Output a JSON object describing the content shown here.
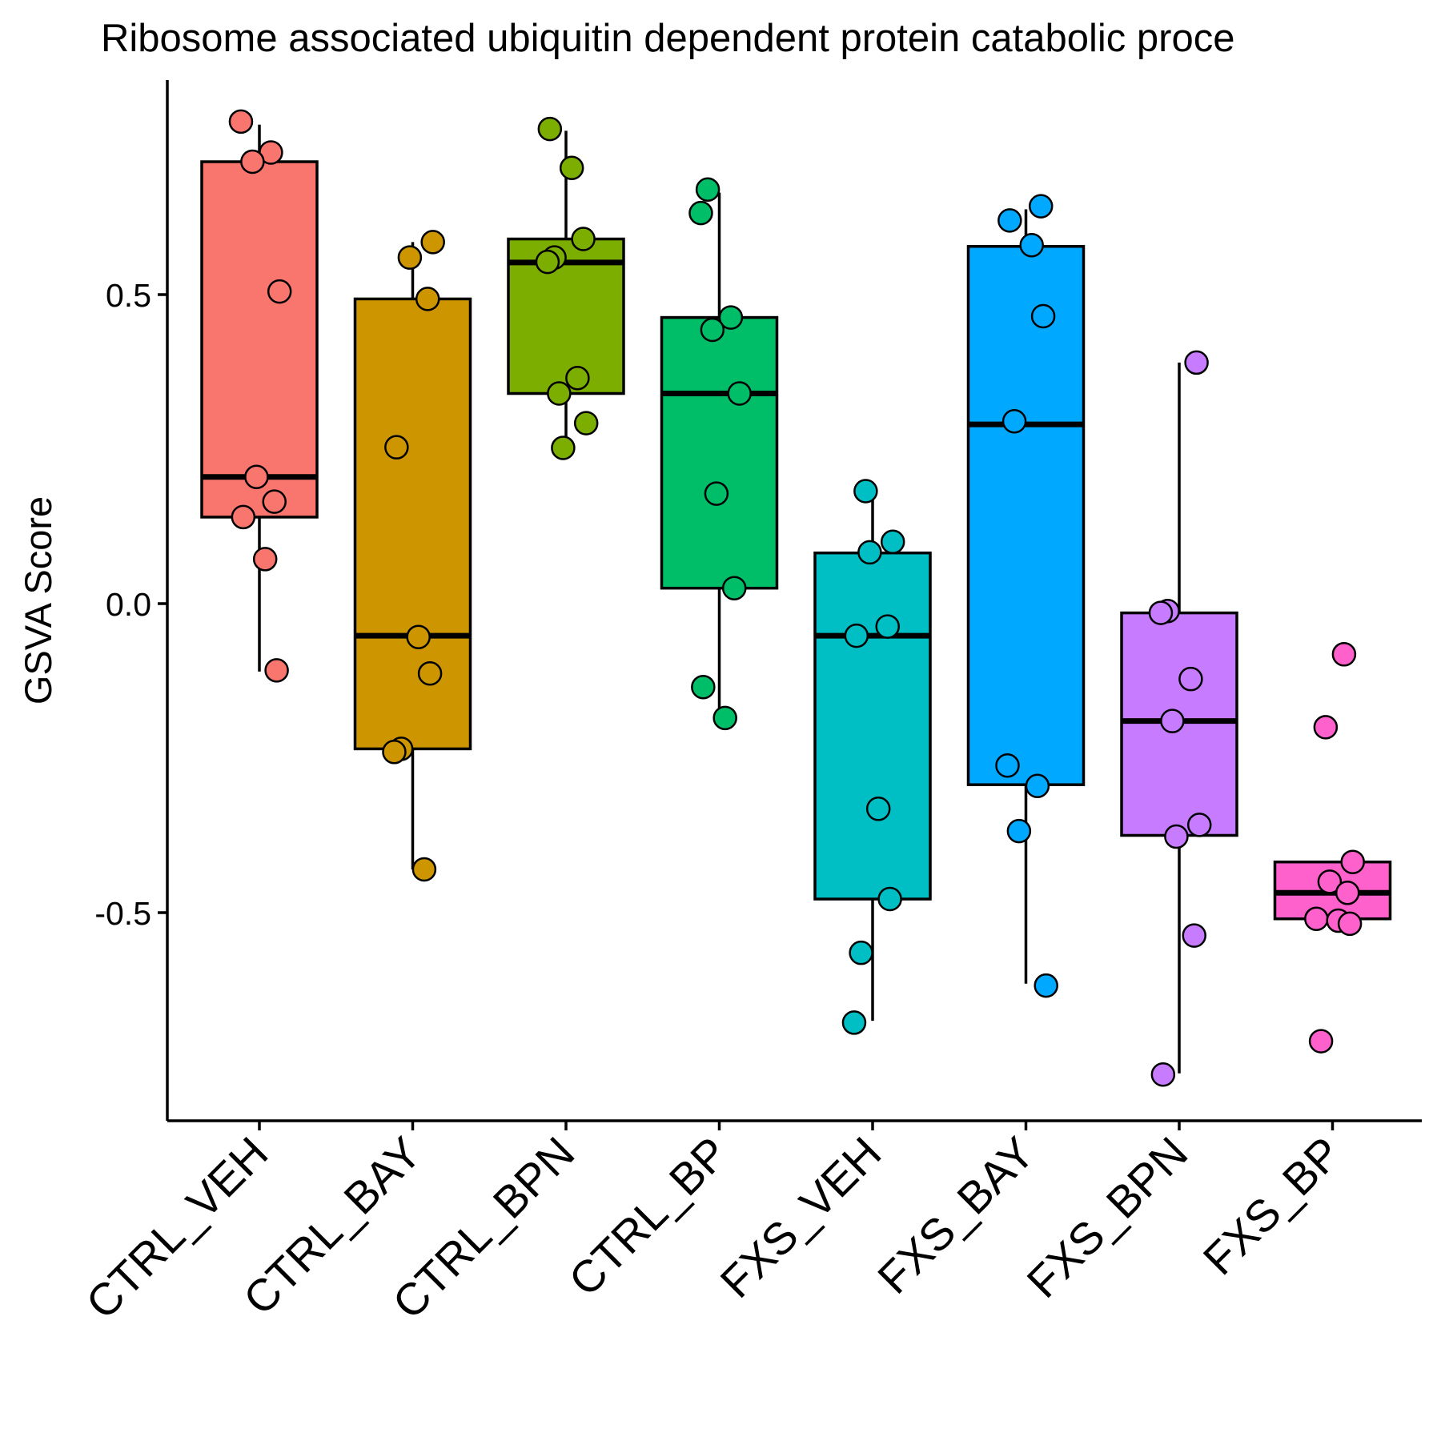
{
  "chart_data": {
    "type": "box",
    "title": "Ribosome associated ubiquitin dependent protein catabolic proce",
    "xlabel": "",
    "ylabel": "GSVA Score",
    "ylim": [
      -0.83,
      0.84
    ],
    "yticks": [
      -0.5,
      0.0,
      0.5
    ],
    "ytick_labels": [
      "-0.5",
      "0.0",
      "0.5"
    ],
    "grid": false,
    "legend": "none",
    "categories": [
      "CTRL_VEH",
      "CTRL_BAY",
      "CTRL_BPN",
      "CTRL_BP",
      "FXS_VEH",
      "FXS_BAY",
      "FXS_BPN",
      "FXS_BP"
    ],
    "colors": [
      "#F8766D",
      "#CD9600",
      "#7CAE00",
      "#00BE67",
      "#00BFC4",
      "#00A9FF",
      "#C77CFF",
      "#FF61CC"
    ],
    "boxes": [
      {
        "category": "CTRL_VEH",
        "whisker_low": -0.11,
        "q1": 0.14,
        "median": 0.205,
        "q3": 0.715,
        "whisker_high": 0.775
      },
      {
        "category": "CTRL_BAY",
        "whisker_low": -0.43,
        "q1": -0.235,
        "median": -0.052,
        "q3": 0.493,
        "whisker_high": 0.585
      },
      {
        "category": "CTRL_BPN",
        "whisker_low": 0.255,
        "q1": 0.34,
        "median": 0.552,
        "q3": 0.59,
        "whisker_high": 0.765
      },
      {
        "category": "CTRL_BP",
        "whisker_low": -0.185,
        "q1": 0.025,
        "median": 0.34,
        "q3": 0.463,
        "whisker_high": 0.665
      },
      {
        "category": "FXS_VEH",
        "whisker_low": -0.675,
        "q1": -0.478,
        "median": -0.052,
        "q3": 0.082,
        "whisker_high": 0.18
      },
      {
        "category": "FXS_BAY",
        "whisker_low": -0.615,
        "q1": -0.293,
        "median": 0.29,
        "q3": 0.578,
        "whisker_high": 0.638
      },
      {
        "category": "FXS_BPN",
        "whisker_low": -0.76,
        "q1": -0.375,
        "median": -0.19,
        "q3": -0.015,
        "whisker_high": 0.39
      },
      {
        "category": "FXS_BP",
        "whisker_low": -0.51,
        "q1": -0.51,
        "median": -0.468,
        "q3": -0.418,
        "whisker_high": -0.418
      }
    ],
    "points": [
      {
        "category": "CTRL_VEH",
        "values": [
          0.78,
          0.73,
          0.715,
          0.505,
          0.205,
          0.165,
          0.14,
          0.072,
          -0.108
        ]
      },
      {
        "category": "CTRL_BAY",
        "values": [
          0.585,
          0.56,
          0.493,
          0.253,
          -0.054,
          -0.113,
          -0.235,
          -0.24,
          -0.43
        ]
      },
      {
        "category": "CTRL_BPN",
        "values": [
          0.768,
          0.705,
          0.59,
          0.56,
          0.553,
          0.365,
          0.34,
          0.292,
          0.252
        ]
      },
      {
        "category": "CTRL_BP",
        "values": [
          0.67,
          0.632,
          0.463,
          0.443,
          0.34,
          0.178,
          0.025,
          -0.135,
          -0.185
        ]
      },
      {
        "category": "FXS_VEH",
        "values": [
          0.182,
          0.1,
          0.083,
          -0.037,
          -0.052,
          -0.332,
          -0.478,
          -0.565,
          -0.678
        ]
      },
      {
        "category": "FXS_BAY",
        "values": [
          0.643,
          0.62,
          0.58,
          0.465,
          0.295,
          -0.262,
          -0.295,
          -0.368,
          -0.618
        ]
      },
      {
        "category": "FXS_BPN",
        "values": [
          0.39,
          -0.012,
          -0.015,
          -0.122,
          -0.19,
          -0.358,
          -0.377,
          -0.537,
          -0.762
        ]
      },
      {
        "category": "FXS_BP",
        "values": [
          -0.082,
          -0.2,
          -0.418,
          -0.45,
          -0.468,
          -0.51,
          -0.513,
          -0.518,
          -0.708
        ]
      }
    ]
  }
}
